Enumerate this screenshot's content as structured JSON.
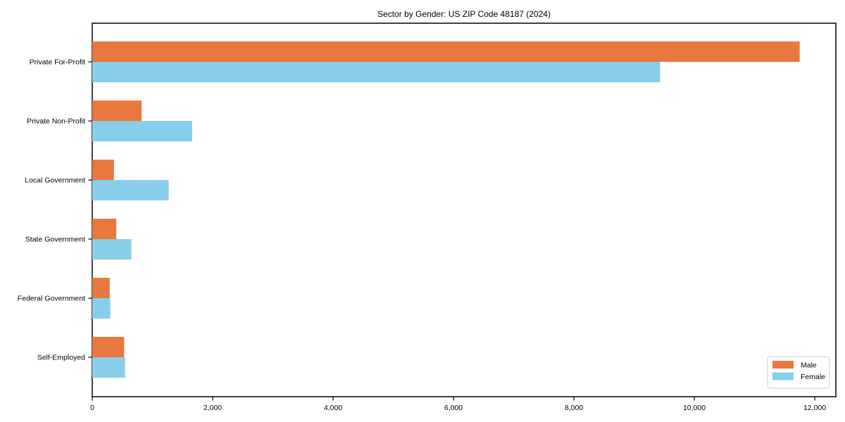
{
  "chart_data": {
    "type": "bar",
    "orientation": "horizontal",
    "title": "Sector by Gender: US ZIP Code 48187 (2024)",
    "categories": [
      "Private For-Profit",
      "Private Non-Profit",
      "Local Government",
      "State Government",
      "Federal Government",
      "Self-Employed"
    ],
    "series": [
      {
        "name": "Male",
        "color": "#E8783D",
        "values": [
          11750,
          820,
          360,
          400,
          290,
          530
        ]
      },
      {
        "name": "Female",
        "color": "#87CEEB",
        "values": [
          9430,
          1660,
          1270,
          650,
          300,
          545
        ]
      }
    ],
    "xlabel": "",
    "ylabel": "",
    "xlim": [
      0,
      12350
    ],
    "xticks": [
      0,
      2000,
      4000,
      6000,
      8000,
      10000,
      12000
    ],
    "xtick_labels": [
      "0",
      "2,000",
      "4,000",
      "6,000",
      "8,000",
      "10,000",
      "12,000"
    ],
    "grid": false,
    "legend_position": "lower right",
    "plot_border_color": "#000000",
    "legend_border_color": "#cccccc"
  }
}
